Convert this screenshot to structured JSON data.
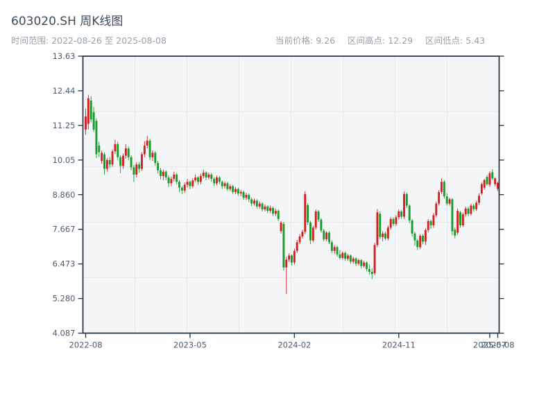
{
  "header": {
    "title": "603020.SH 周K线图",
    "subtitle": "时间范围: 2022-08-26 至 2025-08-08",
    "stats": [
      {
        "label": "当前价格:",
        "value": "9.26"
      },
      {
        "label": "区间高点:",
        "value": "12.29"
      },
      {
        "label": "区间低点:",
        "value": "5.43"
      }
    ]
  },
  "chart_data": {
    "type": "candlestick",
    "title": "603020.SH 周K线图",
    "frequency": "weekly",
    "start_date": "2022-08-26",
    "end_date": "2025-08-08",
    "current_price": 9.26,
    "range_high": 12.29,
    "range_low": 5.43,
    "ylim": [
      4.087,
      13.63
    ],
    "grid": true,
    "y_ticks": [
      "13.63",
      "12.44",
      "11.25",
      "10.05",
      "8.860",
      "7.667",
      "6.473",
      "5.280",
      "4.087"
    ],
    "x_ticks": [
      {
        "pos": 0,
        "label": "2022-08"
      },
      {
        "pos": 39,
        "label": "2023-05"
      },
      {
        "pos": 78,
        "label": "2024-02"
      },
      {
        "pos": 117,
        "label": "2024-11"
      },
      {
        "pos": 151,
        "label": "2025-07"
      },
      {
        "pos": 154,
        "label": "2025-08"
      }
    ],
    "colors": {
      "up": "#d21f1f",
      "down": "#179b2b",
      "spine": "#2b3a49",
      "tick_label": "#4d5c6e",
      "plot_bg": "#f4f5f7",
      "grid": "#e3e7ea",
      "title_text": "#3d4a59",
      "muted_text": "#98a1a9"
    },
    "ohlc": [
      [
        11.1,
        11.82,
        10.92,
        11.55
      ],
      [
        11.3,
        12.29,
        11.1,
        12.18
      ],
      [
        12.1,
        12.25,
        11.35,
        11.45
      ],
      [
        11.7,
        11.88,
        11.02,
        11.1
      ],
      [
        11.4,
        11.48,
        10.12,
        10.25
      ],
      [
        10.55,
        10.68,
        10.15,
        10.32
      ],
      [
        10.02,
        10.38,
        9.92,
        10.3
      ],
      [
        10.25,
        10.32,
        9.55,
        9.75
      ],
      [
        9.75,
        10.12,
        9.65,
        10.05
      ],
      [
        10.05,
        10.15,
        9.78,
        9.9
      ],
      [
        9.9,
        10.42,
        9.82,
        10.35
      ],
      [
        10.35,
        10.75,
        10.25,
        10.6
      ],
      [
        10.6,
        10.68,
        10.05,
        10.15
      ],
      [
        10.15,
        10.22,
        9.6,
        9.85
      ],
      [
        9.85,
        10.28,
        9.75,
        10.2
      ],
      [
        10.2,
        10.6,
        10.1,
        10.45
      ],
      [
        10.45,
        10.52,
        10.05,
        10.15
      ],
      [
        10.15,
        10.22,
        9.7,
        9.8
      ],
      [
        9.8,
        9.88,
        9.3,
        9.55
      ],
      [
        9.55,
        9.98,
        9.45,
        9.9
      ],
      [
        9.9,
        9.98,
        9.62,
        9.75
      ],
      [
        9.75,
        10.32,
        9.68,
        10.25
      ],
      [
        10.25,
        10.7,
        10.15,
        10.55
      ],
      [
        10.55,
        10.88,
        10.45,
        10.72
      ],
      [
        10.72,
        10.78,
        10.05,
        10.15
      ],
      [
        10.15,
        10.38,
        10.02,
        10.3
      ],
      [
        10.3,
        10.36,
        9.85,
        9.95
      ],
      [
        9.95,
        10.02,
        9.58,
        9.7
      ],
      [
        9.7,
        9.78,
        9.38,
        9.5
      ],
      [
        9.5,
        9.72,
        9.35,
        9.65
      ],
      [
        9.65,
        9.7,
        9.35,
        9.45
      ],
      [
        9.45,
        9.52,
        9.12,
        9.25
      ],
      [
        9.25,
        9.48,
        9.15,
        9.4
      ],
      [
        9.4,
        9.65,
        9.32,
        9.55
      ],
      [
        9.55,
        9.6,
        9.22,
        9.3
      ],
      [
        9.3,
        9.36,
        8.95,
        9.1
      ],
      [
        9.1,
        9.15,
        8.88,
        9.0
      ],
      [
        9.0,
        9.28,
        8.92,
        9.2
      ],
      [
        9.2,
        9.4,
        9.1,
        9.3
      ],
      [
        9.3,
        9.35,
        9.05,
        9.15
      ],
      [
        9.15,
        9.42,
        9.08,
        9.35
      ],
      [
        9.35,
        9.55,
        9.28,
        9.45
      ],
      [
        9.45,
        9.5,
        9.2,
        9.3
      ],
      [
        9.3,
        9.58,
        9.22,
        9.5
      ],
      [
        9.5,
        9.72,
        9.42,
        9.62
      ],
      [
        9.62,
        9.66,
        9.35,
        9.45
      ],
      [
        9.45,
        9.62,
        9.38,
        9.55
      ],
      [
        9.55,
        9.6,
        9.3,
        9.4
      ],
      [
        9.4,
        9.46,
        9.15,
        9.25
      ],
      [
        9.25,
        9.52,
        9.18,
        9.45
      ],
      [
        9.45,
        9.5,
        9.22,
        9.3
      ],
      [
        9.3,
        9.35,
        9.05,
        9.15
      ],
      [
        9.15,
        9.32,
        9.08,
        9.25
      ],
      [
        9.25,
        9.3,
        8.98,
        9.05
      ],
      [
        9.05,
        9.22,
        8.98,
        9.15
      ],
      [
        9.15,
        9.2,
        8.88,
        8.95
      ],
      [
        8.95,
        9.12,
        8.88,
        9.05
      ],
      [
        9.05,
        9.1,
        8.82,
        8.9
      ],
      [
        8.9,
        9.02,
        8.8,
        8.95
      ],
      [
        8.95,
        9.0,
        8.68,
        8.75
      ],
      [
        8.75,
        8.92,
        8.68,
        8.85
      ],
      [
        8.85,
        8.9,
        8.6,
        8.7
      ],
      [
        8.7,
        8.76,
        8.46,
        8.55
      ],
      [
        8.55,
        8.72,
        8.48,
        8.65
      ],
      [
        8.65,
        8.7,
        8.38,
        8.45
      ],
      [
        8.45,
        8.62,
        8.38,
        8.55
      ],
      [
        8.55,
        8.6,
        8.28,
        8.35
      ],
      [
        8.35,
        8.52,
        8.28,
        8.45
      ],
      [
        8.45,
        8.5,
        8.22,
        8.3
      ],
      [
        8.3,
        8.48,
        8.22,
        8.4
      ],
      [
        8.4,
        8.45,
        8.12,
        8.2
      ],
      [
        8.2,
        8.38,
        8.12,
        8.3
      ],
      [
        8.3,
        8.35,
        7.95,
        8.02
      ],
      [
        7.6,
        7.95,
        7.52,
        7.9
      ],
      [
        7.85,
        7.92,
        6.25,
        6.35
      ],
      [
        6.35,
        6.72,
        5.43,
        6.62
      ],
      [
        6.62,
        6.84,
        6.54,
        6.76
      ],
      [
        6.76,
        6.8,
        6.42,
        6.52
      ],
      [
        6.52,
        7.0,
        6.45,
        6.92
      ],
      [
        6.92,
        7.3,
        6.85,
        7.22
      ],
      [
        7.22,
        7.5,
        7.15,
        7.42
      ],
      [
        7.42,
        7.65,
        7.35,
        7.58
      ],
      [
        7.58,
        8.98,
        7.5,
        8.88
      ],
      [
        8.5,
        8.56,
        7.82,
        7.9
      ],
      [
        7.9,
        7.96,
        7.16,
        7.28
      ],
      [
        7.28,
        7.78,
        7.22,
        7.72
      ],
      [
        7.72,
        8.35,
        7.65,
        8.28
      ],
      [
        8.28,
        8.33,
        7.92,
        8.0
      ],
      [
        8.0,
        8.05,
        7.55,
        7.62
      ],
      [
        7.62,
        7.68,
        7.25,
        7.32
      ],
      [
        7.32,
        7.6,
        7.25,
        7.55
      ],
      [
        7.55,
        7.6,
        7.15,
        7.22
      ],
      [
        7.22,
        7.28,
        6.85,
        6.92
      ],
      [
        6.92,
        7.12,
        6.82,
        7.05
      ],
      [
        7.05,
        7.1,
        6.72,
        6.8
      ],
      [
        6.8,
        6.95,
        6.62,
        6.68
      ],
      [
        6.68,
        6.9,
        6.62,
        6.85
      ],
      [
        6.85,
        6.9,
        6.58,
        6.65
      ],
      [
        6.65,
        6.82,
        6.58,
        6.76
      ],
      [
        6.76,
        6.8,
        6.48,
        6.55
      ],
      [
        6.55,
        6.72,
        6.48,
        6.66
      ],
      [
        6.66,
        6.7,
        6.4,
        6.48
      ],
      [
        6.48,
        6.65,
        6.42,
        6.6
      ],
      [
        6.6,
        6.64,
        6.32,
        6.4
      ],
      [
        6.4,
        6.58,
        6.34,
        6.52
      ],
      [
        6.52,
        6.56,
        6.22,
        6.3
      ],
      [
        6.3,
        6.46,
        6.1,
        6.2
      ],
      [
        6.2,
        6.32,
        5.95,
        6.12
      ],
      [
        6.15,
        7.2,
        6.08,
        7.12
      ],
      [
        7.12,
        8.36,
        7.05,
        8.25
      ],
      [
        8.2,
        8.28,
        7.32,
        7.4
      ],
      [
        7.4,
        7.6,
        7.25,
        7.52
      ],
      [
        7.52,
        7.58,
        7.28,
        7.35
      ],
      [
        7.35,
        7.8,
        7.28,
        7.72
      ],
      [
        7.72,
        8.08,
        7.65,
        8.02
      ],
      [
        8.02,
        8.08,
        7.78,
        7.85
      ],
      [
        7.85,
        8.15,
        7.78,
        8.08
      ],
      [
        8.08,
        8.35,
        8.0,
        8.28
      ],
      [
        8.28,
        8.33,
        8.02,
        8.1
      ],
      [
        8.1,
        8.97,
        8.02,
        8.88
      ],
      [
        8.88,
        8.93,
        8.4,
        8.48
      ],
      [
        8.48,
        8.53,
        7.88,
        7.97
      ],
      [
        7.97,
        8.02,
        7.42,
        7.52
      ],
      [
        7.52,
        7.58,
        7.1,
        7.28
      ],
      [
        7.28,
        7.34,
        6.95,
        7.05
      ],
      [
        7.05,
        7.5,
        6.98,
        7.44
      ],
      [
        7.44,
        7.5,
        7.15,
        7.24
      ],
      [
        7.24,
        7.7,
        7.12,
        7.64
      ],
      [
        7.64,
        8.02,
        7.56,
        7.95
      ],
      [
        7.95,
        8.0,
        7.68,
        7.8
      ],
      [
        7.8,
        8.22,
        7.72,
        8.15
      ],
      [
        8.15,
        8.62,
        8.08,
        8.55
      ],
      [
        8.55,
        9.02,
        8.48,
        8.95
      ],
      [
        8.95,
        9.42,
        8.88,
        9.3
      ],
      [
        9.3,
        9.36,
        8.72,
        8.8
      ],
      [
        8.8,
        8.91,
        8.48,
        8.55
      ],
      [
        8.55,
        8.76,
        8.48,
        8.7
      ],
      [
        8.7,
        8.74,
        7.46,
        7.6
      ],
      [
        7.65,
        7.72,
        7.36,
        7.45
      ],
      [
        7.55,
        8.38,
        7.48,
        8.3
      ],
      [
        8.25,
        8.3,
        7.72,
        7.8
      ],
      [
        7.8,
        8.25,
        7.74,
        8.18
      ],
      [
        8.18,
        8.45,
        8.1,
        8.38
      ],
      [
        8.38,
        8.44,
        8.12,
        8.2
      ],
      [
        8.2,
        8.55,
        8.14,
        8.48
      ],
      [
        8.48,
        8.54,
        8.28,
        8.36
      ],
      [
        8.36,
        8.65,
        8.3,
        8.58
      ],
      [
        8.58,
        8.9,
        8.5,
        8.82
      ],
      [
        8.9,
        9.28,
        8.84,
        9.22
      ],
      [
        9.1,
        9.4,
        9.03,
        9.36
      ],
      [
        9.47,
        9.53,
        9.16,
        9.22
      ],
      [
        9.2,
        9.66,
        9.13,
        9.6
      ],
      [
        9.63,
        9.73,
        9.36,
        9.42
      ],
      [
        9.22,
        9.46,
        9.15,
        9.42
      ],
      [
        9.06,
        9.3,
        8.98,
        9.26
      ]
    ]
  }
}
